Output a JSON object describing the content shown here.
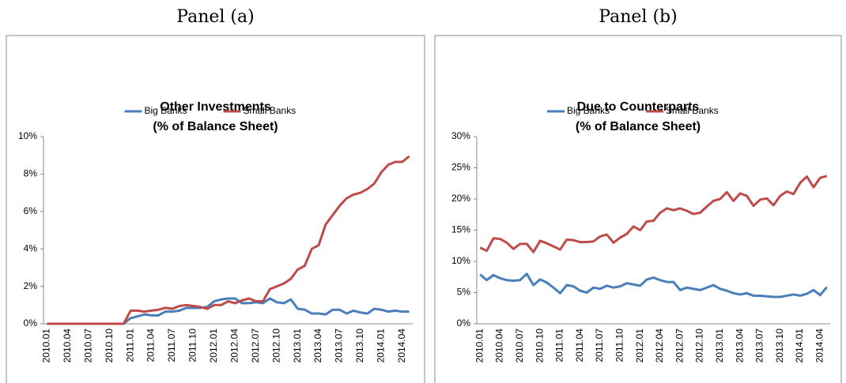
{
  "chart_data": [
    {
      "type": "line",
      "panel": "Panel (a)",
      "title": [
        "Other Investments",
        "(% of Balance Sheet)"
      ],
      "categories": [
        "2010.01",
        null,
        null,
        "2010.04",
        null,
        null,
        "2010.07",
        null,
        null,
        "2010.10",
        null,
        null,
        "2011.01",
        null,
        null,
        "2011.04",
        null,
        null,
        "2011.07",
        null,
        null,
        "2011.10",
        null,
        null,
        "2012.01",
        null,
        null,
        "2012.04",
        null,
        null,
        "2012.07",
        null,
        null,
        "2012.10",
        null,
        null,
        "2013.01",
        null,
        null,
        "2013.04",
        null,
        null,
        "2013.07",
        null,
        null,
        "2013.10",
        null,
        null,
        "2014.01",
        null,
        null,
        "2014.04",
        null
      ],
      "series": [
        {
          "name": "Big Banks",
          "color": "#4a7ebb",
          "values": [
            0,
            0,
            0,
            0,
            0,
            0,
            0,
            0,
            0,
            0,
            0,
            0,
            0.3,
            0.4,
            0.5,
            0.45,
            0.45,
            0.65,
            0.65,
            0.7,
            0.85,
            0.85,
            0.85,
            0.9,
            1.2,
            1.3,
            1.35,
            1.35,
            1.1,
            1.1,
            1.15,
            1.1,
            1.35,
            1.15,
            1.1,
            1.3,
            0.8,
            0.75,
            0.55,
            0.55,
            0.5,
            0.75,
            0.75,
            0.55,
            0.7,
            0.6,
            0.55,
            0.8,
            0.75,
            0.65,
            0.7,
            0.65,
            0.65
          ]
        },
        {
          "name": "Small Banks",
          "color": "#be4b48",
          "values": [
            0,
            0,
            0,
            0,
            0,
            0,
            0,
            0,
            0,
            0,
            0,
            0,
            0.7,
            0.7,
            0.65,
            0.7,
            0.75,
            0.85,
            0.8,
            0.95,
            1.0,
            0.95,
            0.9,
            0.8,
            1.0,
            1.0,
            1.2,
            1.1,
            1.25,
            1.35,
            1.2,
            1.2,
            1.85,
            2.0,
            2.15,
            2.4,
            2.9,
            3.1,
            4.0,
            4.2,
            5.3,
            5.8,
            6.3,
            6.7,
            6.9,
            7.0,
            7.2,
            7.5,
            8.1,
            8.5,
            8.65,
            8.65,
            8.95
          ]
        }
      ],
      "ylim": [
        0,
        10
      ],
      "yticks": [
        {
          "value": 0,
          "label": "0%"
        },
        {
          "value": 2,
          "label": "2%"
        },
        {
          "value": 4,
          "label": "4%"
        },
        {
          "value": 6,
          "label": "6%"
        },
        {
          "value": 8,
          "label": "8%"
        },
        {
          "value": 10,
          "label": "10%"
        }
      ],
      "grid": false,
      "legend": "top"
    },
    {
      "type": "line",
      "panel": "Panel (b)",
      "title": [
        "Due to Counterparts",
        "(% of Balance Sheet)"
      ],
      "categories": [
        "2010.01",
        null,
        null,
        "2010.04",
        null,
        null,
        "2010.07",
        null,
        null,
        "2010.10",
        null,
        null,
        "2011.01",
        null,
        null,
        "2011.04",
        null,
        null,
        "2011.07",
        null,
        null,
        "2011.10",
        null,
        null,
        "2012.01",
        null,
        null,
        "2012.04",
        null,
        null,
        "2012.07",
        null,
        null,
        "2012.10",
        null,
        null,
        "2013.01",
        null,
        null,
        "2013.04",
        null,
        null,
        "2013.07",
        null,
        null,
        "2013.10",
        null,
        null,
        "2014.01",
        null,
        null,
        "2014.04",
        null
      ],
      "series": [
        {
          "name": "Big Banks",
          "color": "#4a7ebb",
          "values": [
            7.9,
            7.0,
            7.8,
            7.3,
            7.0,
            6.9,
            7.0,
            8.0,
            6.2,
            7.1,
            6.6,
            5.8,
            4.9,
            6.2,
            6.0,
            5.3,
            5.0,
            5.8,
            5.6,
            6.1,
            5.8,
            6.0,
            6.5,
            6.3,
            6.1,
            7.1,
            7.4,
            7.0,
            6.7,
            6.7,
            5.4,
            5.8,
            5.6,
            5.4,
            5.8,
            6.2,
            5.6,
            5.3,
            4.9,
            4.7,
            4.9,
            4.5,
            4.5,
            4.4,
            4.3,
            4.3,
            4.5,
            4.7,
            4.5,
            4.8,
            5.4,
            4.6,
            5.9
          ]
        },
        {
          "name": "Small Banks",
          "color": "#be4b48",
          "values": [
            12.2,
            11.7,
            13.7,
            13.6,
            13.0,
            12.0,
            12.8,
            12.8,
            11.5,
            13.3,
            12.9,
            12.4,
            11.9,
            13.5,
            13.4,
            13.1,
            13.1,
            13.2,
            14.0,
            14.3,
            13.0,
            13.8,
            14.4,
            15.6,
            15.0,
            16.4,
            16.5,
            17.8,
            18.5,
            18.2,
            18.5,
            18.1,
            17.6,
            17.8,
            18.8,
            19.7,
            20.0,
            21.1,
            19.7,
            20.9,
            20.5,
            18.9,
            19.9,
            20.1,
            19.0,
            20.5,
            21.2,
            20.8,
            22.6,
            23.6,
            21.9,
            23.4,
            23.7
          ]
        }
      ],
      "ylim": [
        0,
        30
      ],
      "yticks": [
        {
          "value": 0,
          "label": "0%"
        },
        {
          "value": 5,
          "label": "5%"
        },
        {
          "value": 10,
          "label": "10%"
        },
        {
          "value": 15,
          "label": "15%"
        },
        {
          "value": 20,
          "label": "20%"
        },
        {
          "value": 25,
          "label": "25%"
        },
        {
          "value": 30,
          "label": "30%"
        }
      ],
      "grid": false,
      "legend": "top"
    }
  ]
}
